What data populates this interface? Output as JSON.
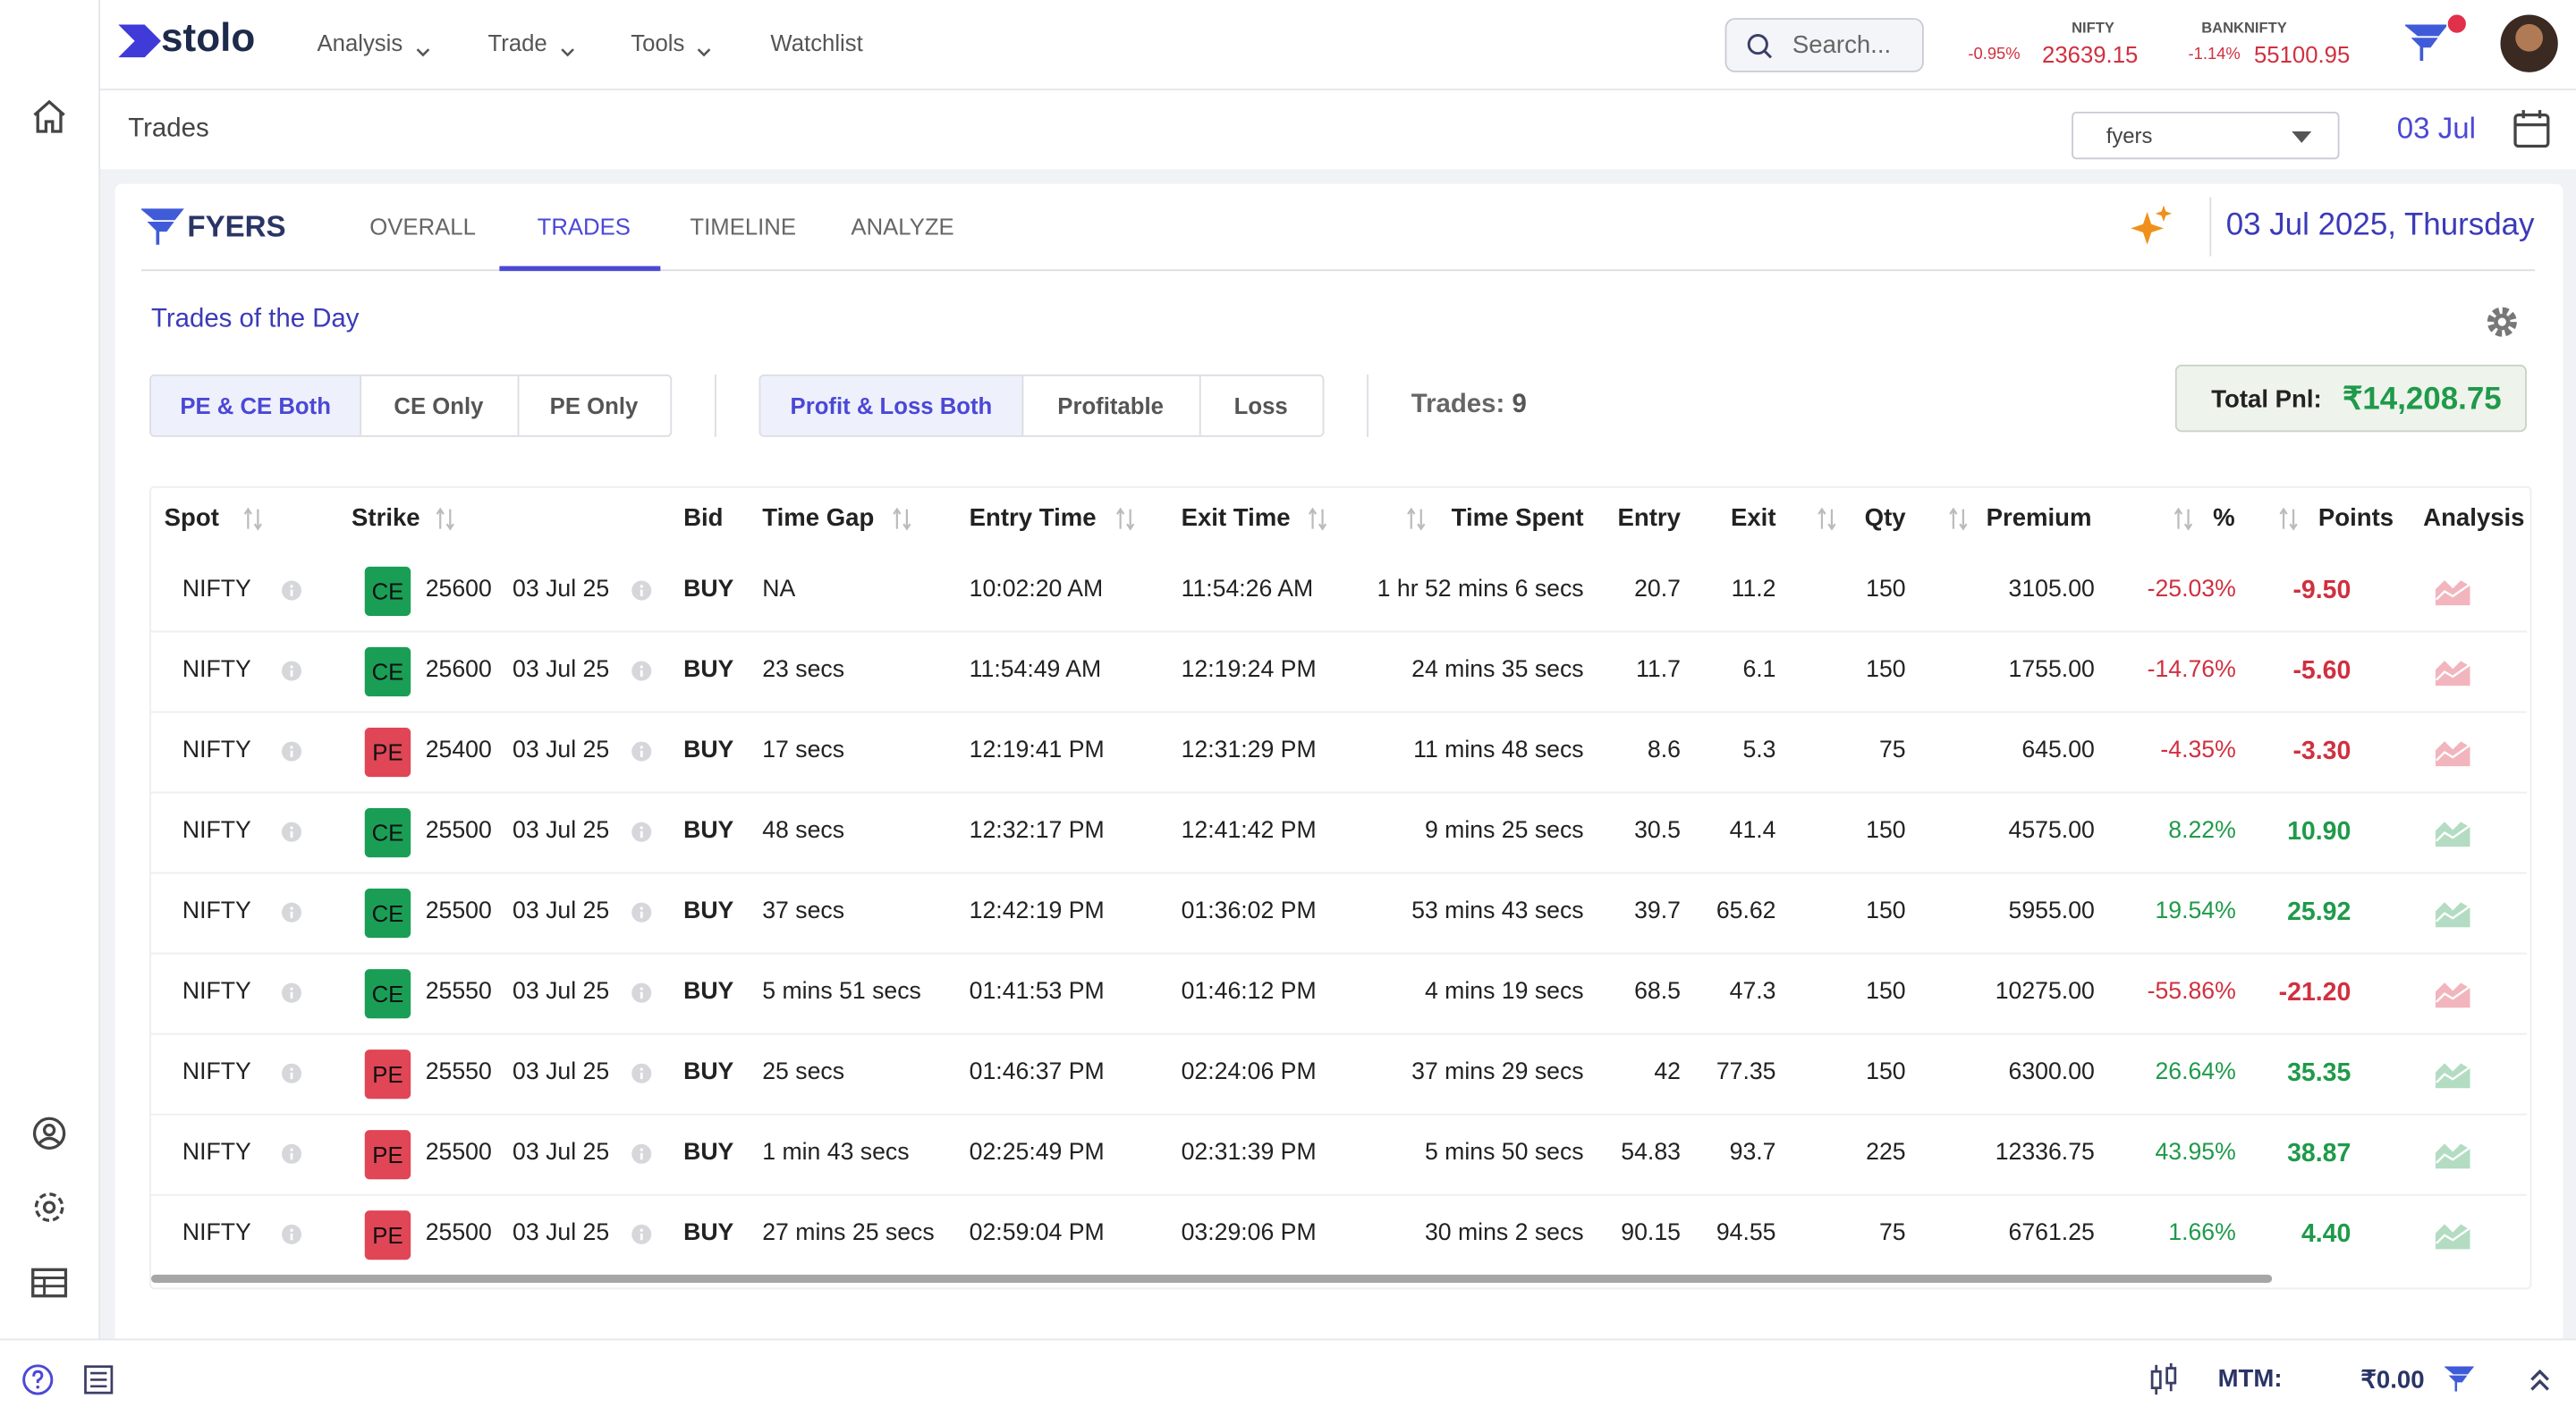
{
  "brand": "stolo",
  "nav": [
    "Analysis",
    "Trade",
    "Tools",
    "Watchlist"
  ],
  "search": "Search...",
  "indices": [
    {
      "name": "NIFTY",
      "change": "-0.95%",
      "value": "23639.15"
    },
    {
      "name": "BANKNIFTY",
      "change": "-1.14%",
      "value": "55100.95"
    }
  ],
  "breadcrumb": "Trades",
  "broker_select": "fyers",
  "date_short": "03 Jul",
  "broker_name": "FYERS",
  "tabs": [
    "OVERALL",
    "TRADES",
    "TIMELINE",
    "ANALYZE"
  ],
  "date_long": "03 Jul 2025, Thursday",
  "section_title": "Trades of the Day",
  "option_filters": [
    "PE & CE Both",
    "CE Only",
    "PE Only"
  ],
  "pnl_filters": [
    "Profit & Loss Both",
    "Profitable",
    "Loss"
  ],
  "trades_count": {
    "label": "Trades:",
    "value": "9"
  },
  "total_pnl": {
    "label": "Total Pnl:",
    "value": "₹14,208.75"
  },
  "table": {
    "columns": [
      "Spot",
      "Strike",
      "Bid",
      "Time Gap",
      "Entry Time",
      "Exit Time",
      "Time Spent",
      "Entry",
      "Exit",
      "Qty",
      "Premium",
      "%",
      "Points",
      "Analysis"
    ],
    "rows": [
      {
        "spot": "NIFTY",
        "type": "CE",
        "strike": "25600",
        "expiry": "03 Jul 25",
        "bid": "BUY",
        "time_gap": "NA",
        "entry_time": "10:02:20 AM",
        "exit_time": "11:54:26 AM",
        "time_spent": "1 hr 52 mins 6 secs",
        "entry": "20.7",
        "exit": "11.2",
        "qty": "150",
        "premium": "3105.00",
        "pct": "-25.03%",
        "points": "-9.50"
      },
      {
        "spot": "NIFTY",
        "type": "CE",
        "strike": "25600",
        "expiry": "03 Jul 25",
        "bid": "BUY",
        "time_gap": "23 secs",
        "entry_time": "11:54:49 AM",
        "exit_time": "12:19:24 PM",
        "time_spent": "24 mins 35 secs",
        "entry": "11.7",
        "exit": "6.1",
        "qty": "150",
        "premium": "1755.00",
        "pct": "-14.76%",
        "points": "-5.60"
      },
      {
        "spot": "NIFTY",
        "type": "PE",
        "strike": "25400",
        "expiry": "03 Jul 25",
        "bid": "BUY",
        "time_gap": "17 secs",
        "entry_time": "12:19:41 PM",
        "exit_time": "12:31:29 PM",
        "time_spent": "11 mins 48 secs",
        "entry": "8.6",
        "exit": "5.3",
        "qty": "75",
        "premium": "645.00",
        "pct": "-4.35%",
        "points": "-3.30"
      },
      {
        "spot": "NIFTY",
        "type": "CE",
        "strike": "25500",
        "expiry": "03 Jul 25",
        "bid": "BUY",
        "time_gap": "48 secs",
        "entry_time": "12:32:17 PM",
        "exit_time": "12:41:42 PM",
        "time_spent": "9 mins 25 secs",
        "entry": "30.5",
        "exit": "41.4",
        "qty": "150",
        "premium": "4575.00",
        "pct": "8.22%",
        "points": "10.90"
      },
      {
        "spot": "NIFTY",
        "type": "CE",
        "strike": "25500",
        "expiry": "03 Jul 25",
        "bid": "BUY",
        "time_gap": "37 secs",
        "entry_time": "12:42:19 PM",
        "exit_time": "01:36:02 PM",
        "time_spent": "53 mins 43 secs",
        "entry": "39.7",
        "exit": "65.62",
        "qty": "150",
        "premium": "5955.00",
        "pct": "19.54%",
        "points": "25.92"
      },
      {
        "spot": "NIFTY",
        "type": "CE",
        "strike": "25550",
        "expiry": "03 Jul 25",
        "bid": "BUY",
        "time_gap": "5 mins 51 secs",
        "entry_time": "01:41:53 PM",
        "exit_time": "01:46:12 PM",
        "time_spent": "4 mins 19 secs",
        "entry": "68.5",
        "exit": "47.3",
        "qty": "150",
        "premium": "10275.00",
        "pct": "-55.86%",
        "points": "-21.20"
      },
      {
        "spot": "NIFTY",
        "type": "PE",
        "strike": "25550",
        "expiry": "03 Jul 25",
        "bid": "BUY",
        "time_gap": "25 secs",
        "entry_time": "01:46:37 PM",
        "exit_time": "02:24:06 PM",
        "time_spent": "37 mins 29 secs",
        "entry": "42",
        "exit": "77.35",
        "qty": "150",
        "premium": "6300.00",
        "pct": "26.64%",
        "points": "35.35"
      },
      {
        "spot": "NIFTY",
        "type": "PE",
        "strike": "25500",
        "expiry": "03 Jul 25",
        "bid": "BUY",
        "time_gap": "1 min 43 secs",
        "entry_time": "02:25:49 PM",
        "exit_time": "02:31:39 PM",
        "time_spent": "5 mins 50 secs",
        "entry": "54.83",
        "exit": "93.7",
        "qty": "225",
        "premium": "12336.75",
        "pct": "43.95%",
        "points": "38.87"
      },
      {
        "spot": "NIFTY",
        "type": "PE",
        "strike": "25500",
        "expiry": "03 Jul 25",
        "bid": "BUY",
        "time_gap": "27 mins 25 secs",
        "entry_time": "02:59:04 PM",
        "exit_time": "03:29:06 PM",
        "time_spent": "30 mins 2 secs",
        "entry": "90.15",
        "exit": "94.55",
        "qty": "75",
        "premium": "6761.25",
        "pct": "1.66%",
        "points": "4.40"
      }
    ]
  },
  "footer": {
    "mtm_label": "MTM:",
    "mtm_value": "₹0.00"
  }
}
